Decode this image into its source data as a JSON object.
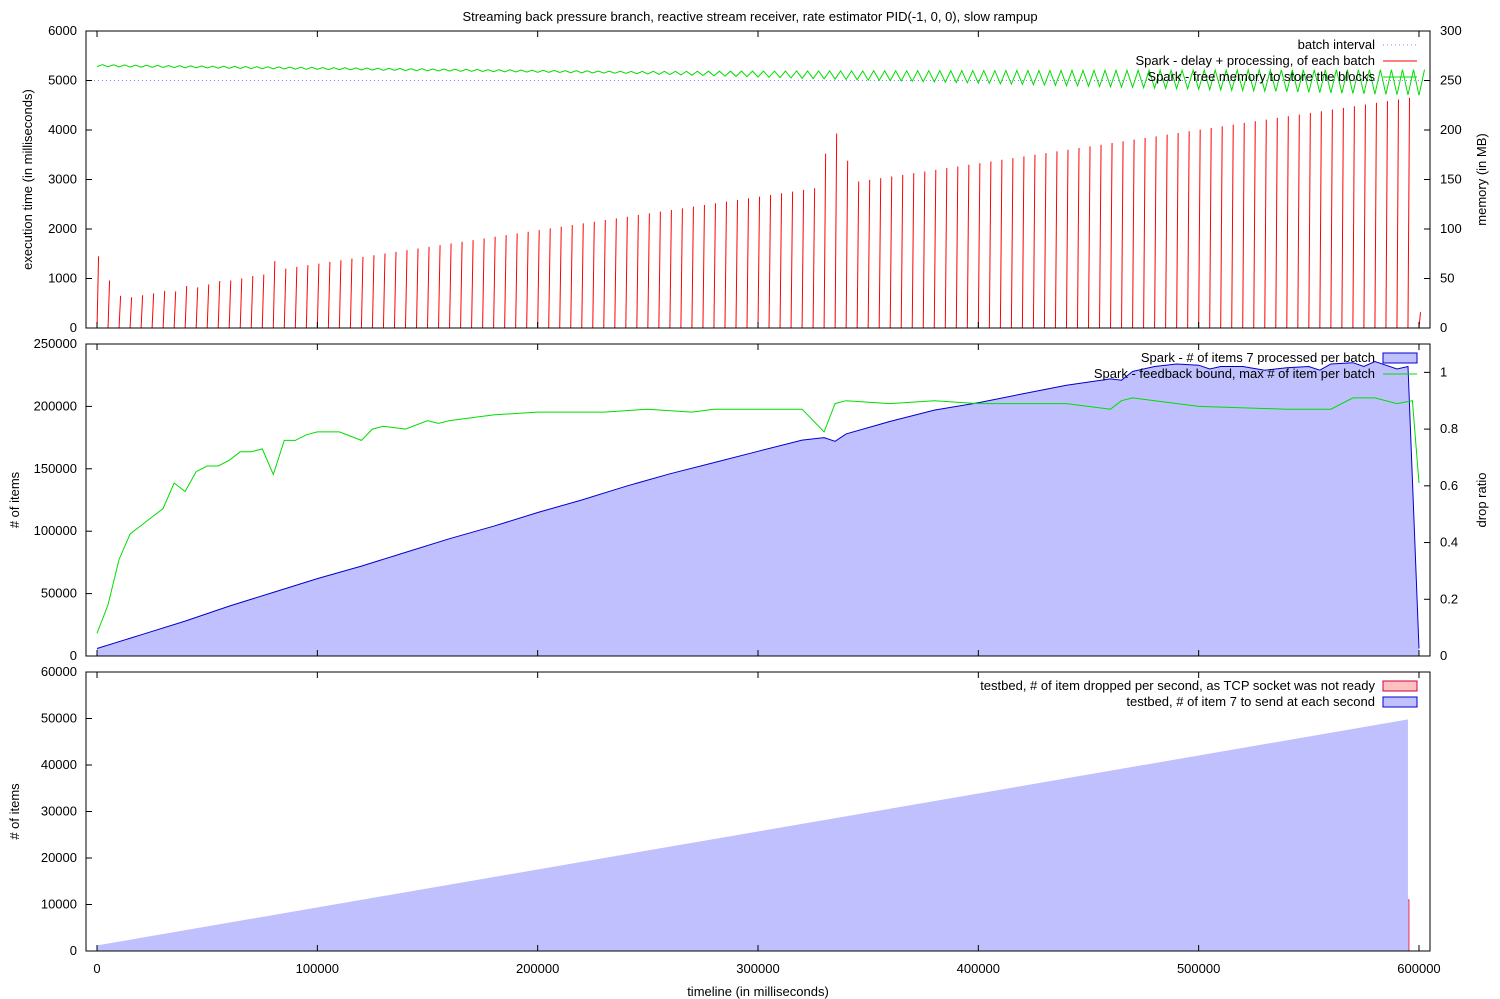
{
  "figure_title": "Streaming back pressure branch, reactive stream receiver, rate estimator PID(-1, 0, 0), slow rampup",
  "chart_data": [
    {
      "type": "line",
      "title": "Streaming back pressure branch, reactive stream receiver, rate estimator PID(-1, 0, 0), slow rampup",
      "ylabel": "execution time (in milliseconds)",
      "y2label": "memory (in MB)",
      "xlim": [
        -5000,
        605000
      ],
      "ylim": [
        0,
        6000
      ],
      "y2lim": [
        0,
        300
      ],
      "yticks": [
        0,
        1000,
        2000,
        3000,
        4000,
        5000,
        6000
      ],
      "y2ticks": [
        0,
        50,
        100,
        150,
        200,
        250,
        300
      ],
      "legend_position": "top-right",
      "series": [
        {
          "name": "batch interval",
          "color": "#8080ff",
          "style": "dotted",
          "axis": "y",
          "constant": 5000
        },
        {
          "name": "Spark - delay + processing, of each batch",
          "color": "#ff0000",
          "style": "spikes",
          "axis": "y",
          "batch_interval_ms": 5000,
          "peaks": [
            {
              "x": 0,
              "y": 1450
            },
            {
              "x": 5000,
              "y": 960
            },
            {
              "x": 10000,
              "y": 650
            },
            {
              "x": 15000,
              "y": 620
            },
            {
              "x": 20000,
              "y": 660
            },
            {
              "x": 25000,
              "y": 700
            },
            {
              "x": 30000,
              "y": 750
            },
            {
              "x": 35000,
              "y": 740
            },
            {
              "x": 40000,
              "y": 850
            },
            {
              "x": 45000,
              "y": 820
            },
            {
              "x": 50000,
              "y": 880
            },
            {
              "x": 55000,
              "y": 950
            },
            {
              "x": 60000,
              "y": 960
            },
            {
              "x": 65000,
              "y": 1000
            },
            {
              "x": 70000,
              "y": 1050
            },
            {
              "x": 75000,
              "y": 1080
            },
            {
              "x": 80000,
              "y": 1350
            },
            {
              "x": 85000,
              "y": 1200
            },
            {
              "x": 330000,
              "y": 3520
            },
            {
              "x": 335000,
              "y": 3930
            },
            {
              "x": 340000,
              "y": 3380
            },
            {
              "x": 595000,
              "y": 4650
            },
            {
              "x": 600000,
              "y": 320
            }
          ],
          "trend": {
            "from_x": 85000,
            "from_y": 1200,
            "to_x": 595000,
            "to_y": 4650
          }
        },
        {
          "name": "Spark - free memory to store the blocks",
          "color": "#00dd00",
          "style": "sawtooth",
          "axis": "y2",
          "start": 265,
          "end": 248,
          "ramp_from_x": 240000,
          "period_ms": 5000,
          "amplitude_max": 13
        }
      ]
    },
    {
      "type": "area",
      "ylabel": "# of items",
      "y2label": "drop ratio",
      "xlim": [
        -5000,
        605000
      ],
      "ylim": [
        0,
        250000
      ],
      "y2lim": [
        0,
        1.1
      ],
      "yticks": [
        0,
        50000,
        100000,
        150000,
        200000,
        250000
      ],
      "y2ticks": [
        0,
        0.2,
        0.4,
        0.6,
        0.8,
        1
      ],
      "legend_position": "top-right",
      "series": [
        {
          "name": "Spark - # of items 7 processed per batch",
          "color": "#0000cc",
          "fill": "#c0c0ff",
          "axis": "y",
          "x": [
            0,
            20000,
            40000,
            60000,
            80000,
            100000,
            120000,
            140000,
            160000,
            180000,
            200000,
            220000,
            240000,
            260000,
            280000,
            300000,
            320000,
            330000,
            335000,
            340000,
            360000,
            380000,
            400000,
            420000,
            440000,
            460000,
            465000,
            470000,
            480000,
            490000,
            500000,
            505000,
            510000,
            520000,
            530000,
            540000,
            550000,
            555000,
            560000,
            570000,
            575000,
            580000,
            585000,
            590000,
            595000,
            600000
          ],
          "values": [
            6000,
            17000,
            28000,
            40000,
            51000,
            62000,
            72000,
            83000,
            94000,
            104000,
            115000,
            125000,
            136000,
            146000,
            155000,
            164000,
            173000,
            175000,
            172000,
            178000,
            188000,
            197000,
            203000,
            210000,
            217000,
            222000,
            221000,
            228000,
            232000,
            234000,
            233000,
            230000,
            232000,
            232000,
            229000,
            231000,
            232000,
            229000,
            234000,
            235000,
            232000,
            236000,
            233000,
            230000,
            232000,
            6000
          ]
        },
        {
          "name": "Spark - feedback bound, max # of item per batch",
          "color": "#00dd00",
          "style": "line",
          "axis": "y2",
          "x": [
            0,
            5000,
            10000,
            15000,
            20000,
            25000,
            30000,
            35000,
            40000,
            45000,
            50000,
            55000,
            60000,
            65000,
            70000,
            75000,
            80000,
            85000,
            90000,
            95000,
            100000,
            110000,
            120000,
            125000,
            130000,
            140000,
            150000,
            155000,
            160000,
            170000,
            180000,
            200000,
            230000,
            250000,
            270000,
            280000,
            290000,
            300000,
            320000,
            330000,
            335000,
            340000,
            360000,
            380000,
            400000,
            440000,
            460000,
            465000,
            470000,
            500000,
            540000,
            560000,
            570000,
            580000,
            590000,
            597000,
            600000
          ],
          "values": [
            0.08,
            0.18,
            0.34,
            0.43,
            0.46,
            0.49,
            0.52,
            0.61,
            0.58,
            0.65,
            0.67,
            0.67,
            0.69,
            0.72,
            0.72,
            0.73,
            0.64,
            0.76,
            0.76,
            0.78,
            0.79,
            0.79,
            0.76,
            0.8,
            0.81,
            0.8,
            0.83,
            0.82,
            0.83,
            0.84,
            0.85,
            0.86,
            0.86,
            0.87,
            0.86,
            0.87,
            0.87,
            0.87,
            0.87,
            0.79,
            0.89,
            0.9,
            0.89,
            0.9,
            0.89,
            0.89,
            0.87,
            0.9,
            0.91,
            0.88,
            0.87,
            0.87,
            0.91,
            0.91,
            0.89,
            0.9,
            0.61
          ]
        }
      ]
    },
    {
      "type": "bar",
      "xlabel": "timeline (in milliseconds)",
      "ylabel": "# of items",
      "xlim": [
        -5000,
        605000
      ],
      "ylim": [
        0,
        60000
      ],
      "yticks": [
        0,
        10000,
        20000,
        30000,
        40000,
        50000,
        60000
      ],
      "xticks": [
        0,
        100000,
        200000,
        300000,
        400000,
        500000,
        600000
      ],
      "legend_position": "top-right",
      "series": [
        {
          "name": "testbed, # of item dropped per second, as TCP socket was not ready",
          "color": "#cc0044",
          "fill": "#ffc0c0",
          "axis": "y",
          "x": [
            334000,
            335000,
            459000,
            460000,
            462000,
            463000,
            464000,
            465000,
            486000,
            488000,
            490000,
            492000,
            494000,
            496000,
            498000,
            500000,
            503000,
            506000,
            509000,
            512000,
            515000,
            518000,
            521000,
            524000,
            527000,
            530000,
            533000,
            536000,
            539000,
            542000,
            545000,
            548000,
            551000,
            554000,
            557000,
            560000,
            563000,
            566000,
            569000,
            572000,
            575000,
            578000,
            581000,
            584000,
            587000,
            590000,
            593000,
            595000
          ],
          "values": [
            5200,
            800,
            3600,
            1200,
            1100,
            1400,
            1800,
            900,
            1200,
            1300,
            1500,
            2000,
            2200,
            2600,
            3100,
            3000,
            3300,
            3800,
            4200,
            4000,
            4500,
            4800,
            5100,
            5000,
            5700,
            6000,
            6300,
            6600,
            6800,
            7200,
            7500,
            7300,
            7900,
            12800,
            7800,
            8500,
            10600,
            7600,
            8200,
            8900,
            9200,
            9500,
            10500,
            9300,
            10300,
            9800,
            10800,
            11000
          ]
        },
        {
          "name": "testbed, # of item 7 to send at each second",
          "color": "#c0c0ff",
          "fill": "#c0c0ff",
          "axis": "y",
          "x": [
            0,
            595000
          ],
          "values": [
            1200,
            49800
          ]
        }
      ]
    }
  ]
}
